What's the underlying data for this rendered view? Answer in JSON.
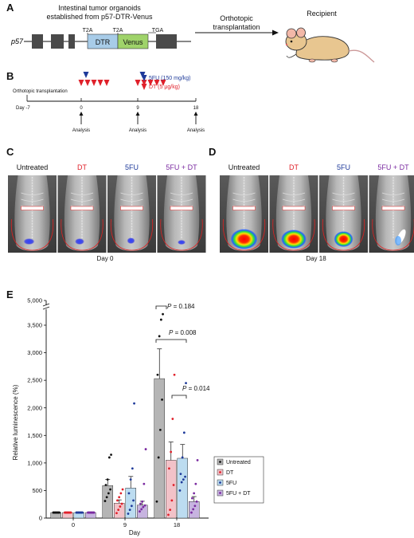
{
  "panels": [
    "A",
    "B",
    "C",
    "D",
    "E"
  ],
  "panel_a": {
    "title_line1": "Intestinal tumor organoids",
    "title_line2": "established from p57-DTR-Venus",
    "gene": "p57",
    "t2a_1": "T2A",
    "t2a_2": "T2A",
    "tga": "TGA",
    "dtr": "DTR",
    "venus": "Venus",
    "transplant_line1": "Orthotopic",
    "transplant_line2": "transplantation",
    "recipient": "Recipient",
    "colors": {
      "dtr": "#a8cce8",
      "venus": "#9fd36a",
      "exon": "#4a4a4a",
      "mouse": "#e8c690"
    }
  },
  "panel_b": {
    "legend_5fu": "5FU (150 mg/kg)",
    "legend_dt": "DT (5 μg/kg)",
    "transplant_label": "Orthotopic transplantation",
    "day_label": "Day -7",
    "days": [
      "0",
      "9",
      "18"
    ],
    "analysis": "Analysis",
    "colors": {
      "fu": "#1e3a9a",
      "dt": "#e0202a"
    }
  },
  "panel_c": {
    "labels": [
      "Untreated",
      "DT",
      "5FU",
      "5FU + DT"
    ],
    "label_colors": [
      "#111111",
      "#e0202a",
      "#1e3a9a",
      "#7a2aa0"
    ],
    "caption": "Day 0"
  },
  "panel_d": {
    "labels": [
      "Untreated",
      "DT",
      "5FU",
      "5FU + DT"
    ],
    "label_colors": [
      "#111111",
      "#e0202a",
      "#1e3a9a",
      "#7a2aa0"
    ],
    "caption": "Day 18"
  },
  "chart_data": {
    "type": "bar",
    "ylabel": "Relative luminescence (%)",
    "xlabel": "Day",
    "categories": [
      "0",
      "9",
      "18"
    ],
    "yticks": [
      "0",
      "500",
      "1,000",
      "1,500",
      "2,000",
      "2,500",
      "3,000",
      "3,500",
      "5,000"
    ],
    "axis_break": true,
    "series": [
      {
        "name": "Untreated",
        "color": "#b5b5b5",
        "dot": "#111111",
        "values": [
          100,
          590,
          2530
        ],
        "err": [
          0,
          110,
          540
        ],
        "points": [
          [
            100,
            100,
            100,
            100,
            100,
            100,
            100,
            100
          ],
          [
            310,
            380,
            450,
            520,
            600,
            700,
            1100,
            1150
          ],
          [
            300,
            1100,
            1600,
            2150,
            2600,
            3300,
            3600,
            3850
          ]
        ]
      },
      {
        "name": "DT",
        "color": "#f2c2c8",
        "dot": "#e0202a",
        "values": [
          100,
          270,
          1050
        ],
        "err": [
          0,
          60,
          330
        ],
        "points": [
          [
            100,
            100,
            100,
            100,
            100,
            100,
            100,
            100
          ],
          [
            90,
            150,
            210,
            260,
            320,
            380,
            450,
            520
          ],
          [
            60,
            150,
            320,
            600,
            900,
            1200,
            1800,
            2600
          ]
        ]
      },
      {
        "name": "5FU",
        "color": "#bcdcf0",
        "dot": "#1e3a9a",
        "values": [
          100,
          545,
          1085
        ],
        "err": [
          0,
          210,
          250
        ],
        "points": [
          [
            100,
            100,
            100,
            100,
            100,
            100,
            100,
            100
          ],
          [
            80,
            150,
            220,
            320,
            450,
            700,
            900,
            2080
          ],
          [
            500,
            650,
            700,
            750,
            800,
            1100,
            1550,
            2450
          ]
        ]
      },
      {
        "name": "5FU + DT",
        "color": "#c7b4e0",
        "dot": "#7a2aa0",
        "values": [
          100,
          235,
          300
        ],
        "err": [
          0,
          70,
          90
        ],
        "points": [
          [
            100,
            100,
            100,
            100,
            100,
            100,
            100,
            100
          ],
          [
            120,
            160,
            200,
            230,
            260,
            300,
            620,
            1250
          ],
          [
            100,
            160,
            220,
            300,
            360,
            450,
            620,
            1050
          ]
        ]
      }
    ],
    "annotations": [
      "P = 0.184",
      "P = 0.008",
      "P = 0.014"
    ]
  }
}
